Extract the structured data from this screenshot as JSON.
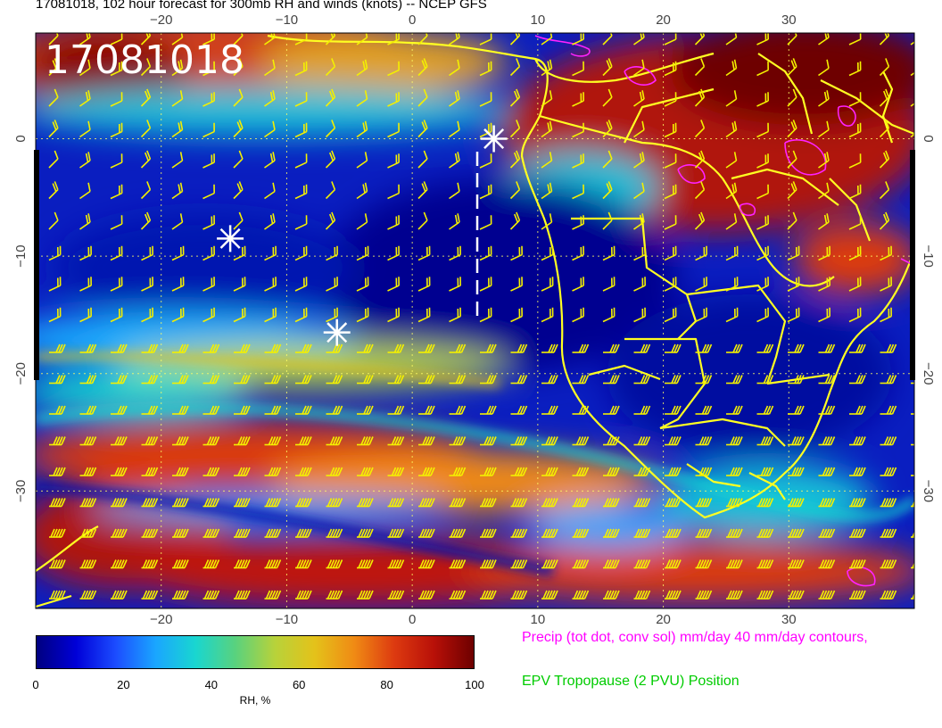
{
  "title": "17081018, 102 hour forecast for 300mb RH and winds (knots) -- NCEP GFS",
  "overlay_label": "17081018",
  "map": {
    "lon_range": [
      -30,
      40
    ],
    "lat_range": [
      -40,
      9
    ],
    "lon_ticks": [
      {
        "value": -20,
        "label": "−20"
      },
      {
        "value": -10,
        "label": "−10"
      },
      {
        "value": 0,
        "label": "0"
      },
      {
        "value": 10,
        "label": "10"
      },
      {
        "value": 20,
        "label": "20"
      },
      {
        "value": 30,
        "label": "30"
      }
    ],
    "lat_ticks": [
      {
        "value": 0,
        "label": "0"
      },
      {
        "value": -10,
        "label": "−10"
      },
      {
        "value": -20,
        "label": "−20"
      },
      {
        "value": -30,
        "label": "−30"
      }
    ],
    "markers": [
      {
        "lon": 6.5,
        "lat": 0.0
      },
      {
        "lon": -14.5,
        "lat": -8.5
      },
      {
        "lon": -6.0,
        "lat": -16.5
      }
    ],
    "colors": {
      "coast": "#ffff22",
      "barb": "#f4f000",
      "grid": "#ffff66",
      "precip": "#ff22ff",
      "marker": "#ffffff"
    }
  },
  "colorbar": {
    "ticks": [
      "0",
      "20",
      "40",
      "60",
      "80",
      "100"
    ],
    "label": "RH, %",
    "colors": [
      "#000080",
      "#0000d8",
      "#1c4dff",
      "#1aa6ff",
      "#19d6d0",
      "#59d27e",
      "#b8d23a",
      "#e4c21a",
      "#f08a14",
      "#dd3a10",
      "#b81008",
      "#6e0000"
    ]
  },
  "captions": {
    "precip": "Precip (tot dot, conv sol) mm/day 40 mm/day contours,",
    "precip_color": "#ff00ff",
    "epv": "EPV Tropopause (2 PVU) Position",
    "epv_color": "#00cc00"
  }
}
